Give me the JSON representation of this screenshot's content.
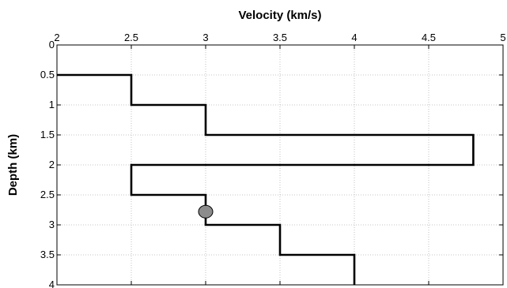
{
  "chart_data": {
    "type": "line",
    "title": "",
    "xlabel": "Velocity (km/s)",
    "ylabel": "Depth (km)",
    "xlim": [
      2,
      5
    ],
    "ylim": [
      0,
      4
    ],
    "y_axis_inverted": true,
    "x_axis_position": "top",
    "grid": true,
    "x_ticks": [
      2,
      2.5,
      3,
      3.5,
      4,
      4.5,
      5
    ],
    "x_tick_labels": [
      "2",
      "2.5",
      "3",
      "3.5",
      "4",
      "4.5",
      "5"
    ],
    "y_ticks": [
      0,
      0.5,
      1,
      1.5,
      2,
      2.5,
      3,
      3.5,
      4
    ],
    "y_tick_labels": [
      "0",
      "0.5",
      "1",
      "1.5",
      "2",
      "2.5",
      "3",
      "3.5",
      "4"
    ],
    "series": [
      {
        "style": "step",
        "color": "#000000",
        "points": [
          {
            "x": 2,
            "y": 0.5
          },
          {
            "x": 2.5,
            "y": 0.5
          },
          {
            "x": 2.5,
            "y": 1
          },
          {
            "x": 3,
            "y": 1
          },
          {
            "x": 3,
            "y": 1.5
          },
          {
            "x": 4.8,
            "y": 1.5
          },
          {
            "x": 4.8,
            "y": 2
          },
          {
            "x": 2.5,
            "y": 2
          },
          {
            "x": 2.5,
            "y": 2.5
          },
          {
            "x": 3,
            "y": 2.5
          },
          {
            "x": 3,
            "y": 3
          },
          {
            "x": 3.5,
            "y": 3
          },
          {
            "x": 3.5,
            "y": 3.5
          },
          {
            "x": 4,
            "y": 3.5
          },
          {
            "x": 4,
            "y": 4
          }
        ]
      }
    ],
    "markers": [
      {
        "x": 3,
        "y": 2.78,
        "shape": "circle",
        "fill": "#8c8c8c",
        "stroke": "#000000"
      }
    ]
  }
}
